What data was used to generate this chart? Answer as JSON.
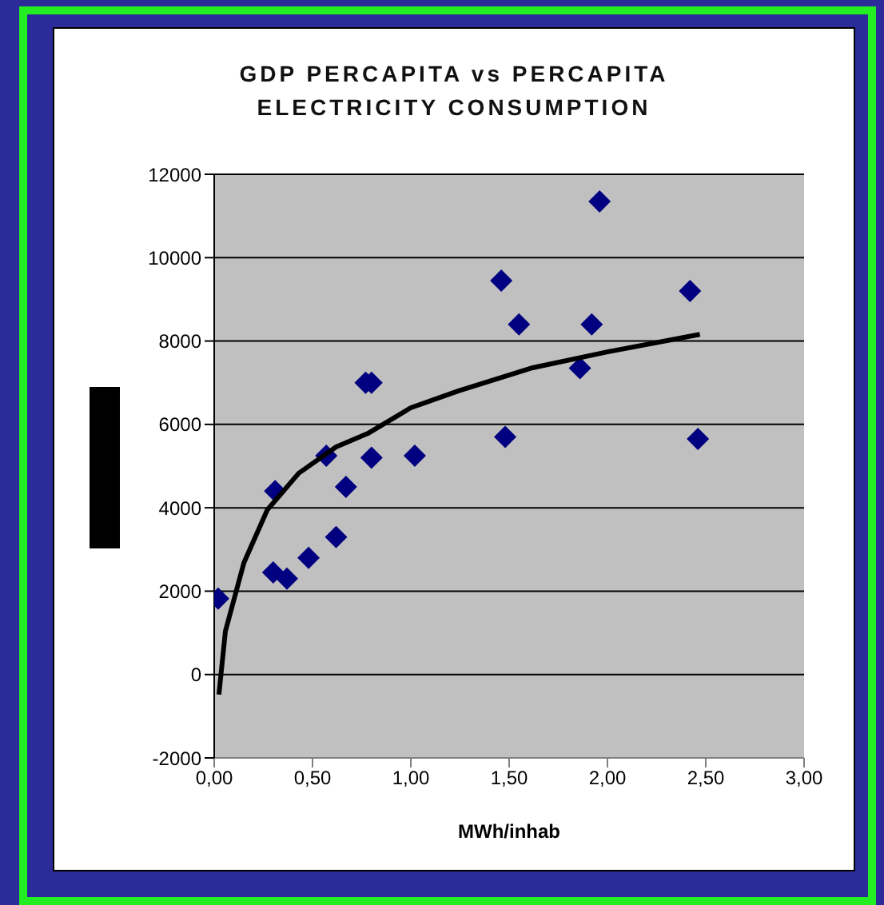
{
  "chart_data": {
    "type": "scatter",
    "title": "GDP PERCAPITA vs PERCAPITA ELECTRICITY CONSUMPTION",
    "xlabel": "MWh/inhab",
    "xlim": [
      0,
      3
    ],
    "xticks": [
      {
        "value": 0,
        "label": "0,00"
      },
      {
        "value": 0.5,
        "label": "0,50"
      },
      {
        "value": 1,
        "label": "1,00"
      },
      {
        "value": 1.5,
        "label": "1,50"
      },
      {
        "value": 2,
        "label": "2,00"
      },
      {
        "value": 2.5,
        "label": "2,50"
      },
      {
        "value": 3,
        "label": "3,00"
      }
    ],
    "ylim": [
      -2000,
      12000
    ],
    "yticks": [
      -2000,
      0,
      2000,
      4000,
      6000,
      8000,
      10000,
      12000
    ],
    "grid": "y",
    "legend": false,
    "series": [
      {
        "color": "#000080",
        "marker": "diamond",
        "x": [
          0.02,
          0.31,
          0.3,
          0.37,
          0.48,
          0.62,
          0.67,
          0.57,
          0.77,
          0.8,
          0.8,
          1.02,
          1.46,
          1.48,
          1.55,
          1.86,
          1.92,
          1.96,
          2.42,
          2.46
        ],
        "values": [
          1820,
          4400,
          2450,
          2300,
          2800,
          3300,
          4500,
          5250,
          7000,
          7000,
          5200,
          5250,
          9450,
          5700,
          8400,
          7350,
          8400,
          11350,
          9200,
          5650
        ]
      },
      {
        "type": "line",
        "color": "#000000",
        "marker": "none",
        "x": [
          0.024,
          0.057,
          0.151,
          0.27,
          0.43,
          0.62,
          0.78,
          1.0,
          1.24,
          1.62,
          2.0,
          2.47
        ],
        "values": [
          -480,
          1040,
          2680,
          3950,
          4830,
          5460,
          5780,
          6400,
          6800,
          7360,
          7740,
          8160
        ]
      }
    ]
  }
}
